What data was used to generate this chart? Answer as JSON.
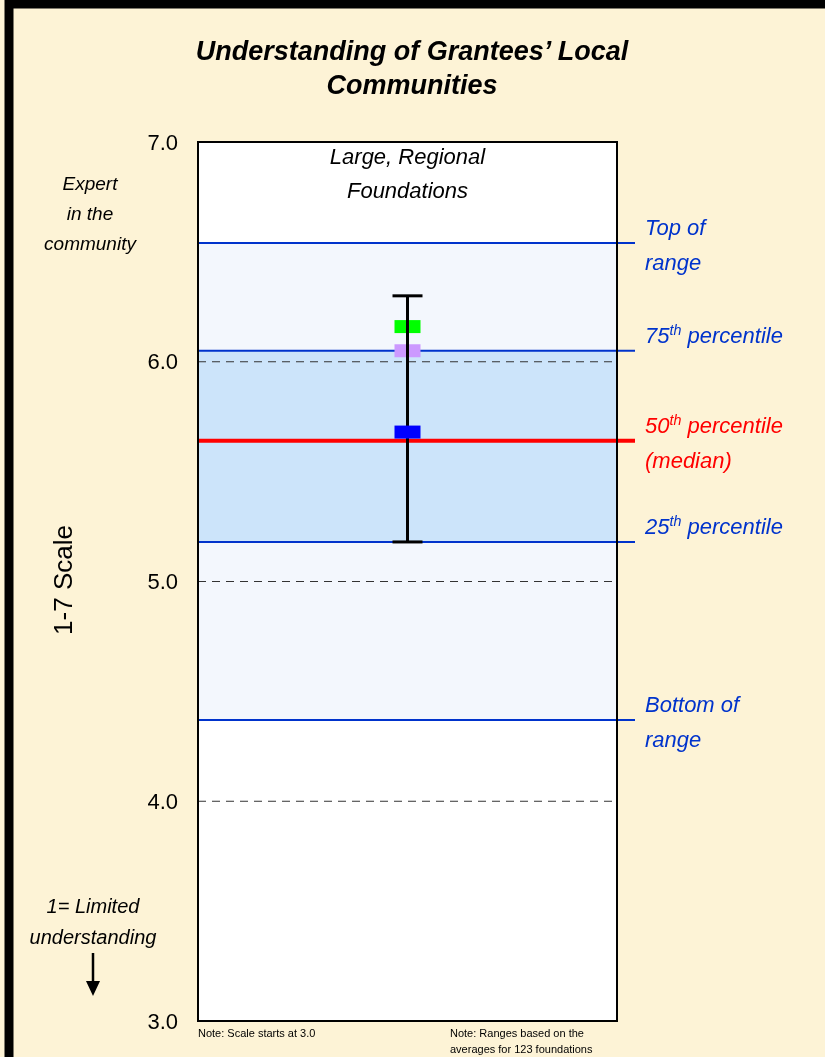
{
  "chart_data": {
    "type": "scatter",
    "title": "Understanding of Grantees’ Local Communities",
    "ylabel": "1-7 Scale",
    "categories": [
      "Large, Regional Foundations"
    ],
    "ylim": [
      3.0,
      7.0
    ],
    "yticks": [
      {
        "value": 3,
        "label": "3.0"
      },
      {
        "value": 4,
        "label": "4.0"
      },
      {
        "value": 5,
        "label": "5.0"
      },
      {
        "value": 6,
        "label": "6.0"
      },
      {
        "value": 7,
        "label": "7.0"
      }
    ],
    "grid": "y",
    "marker": "square",
    "bands": [
      {
        "axis": "y",
        "from": 4.37,
        "to": 6.54,
        "color": "#f3f7fd"
      },
      {
        "axis": "y",
        "from": 5.18,
        "to": 6.05,
        "color": "#cce4fa"
      }
    ],
    "ref_lines": [
      {
        "axis": "y",
        "value": 6.54,
        "label": "Top of range",
        "color": "#0033cc"
      },
      {
        "axis": "y",
        "value": 6.05,
        "label": "75$^{th}$ percentile",
        "color": "#0033cc"
      },
      {
        "axis": "y",
        "value": 5.64,
        "label": "50$^{th}$ percentile (median)",
        "color": "#ff0000"
      },
      {
        "axis": "y",
        "value": 5.18,
        "label": "25$^{th}$ percentile",
        "color": "#0033cc"
      },
      {
        "axis": "y",
        "value": 4.37,
        "label": "Bottom of range",
        "color": "#0033cc"
      }
    ],
    "series": [
      {
        "color": "#00ff00",
        "values": [
          6.16
        ]
      },
      {
        "color": "#cc99ff",
        "values": [
          6.05
        ]
      },
      {
        "color": "#0000ff",
        "values": [
          5.68
        ],
        "errors": [
          [
            5.18,
            6.3
          ]
        ]
      }
    ],
    "annotations": [
      "Expert in the community",
      "1= Limited understanding",
      "Note: Scale starts at 3.0",
      "Note: Ranges based on the averages for 123 foundations"
    ]
  }
}
